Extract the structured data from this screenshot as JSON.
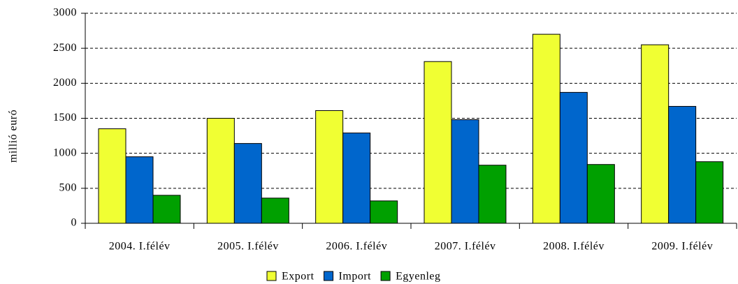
{
  "chart_data": {
    "type": "bar",
    "y_label": "millió euró",
    "categories": [
      "2004. I.félév",
      "2005. I.félév",
      "2006. I.félév",
      "2007. I.félév",
      "2008. I.félév",
      "2009. I.félév"
    ],
    "series": [
      {
        "name": "Export",
        "color": "#f0ff33",
        "values": [
          1350,
          1500,
          1610,
          2310,
          2700,
          2550
        ]
      },
      {
        "name": "Import",
        "color": "#0066cc",
        "values": [
          950,
          1140,
          1290,
          1480,
          1870,
          1670
        ]
      },
      {
        "name": "Egyenleg",
        "color": "#00a000",
        "values": [
          400,
          360,
          320,
          830,
          840,
          880
        ]
      }
    ],
    "ylim": [
      0,
      3000
    ],
    "yticks": [
      0,
      500,
      1000,
      1500,
      2000,
      2500,
      3000
    ],
    "grid": true,
    "legend": "bottom"
  }
}
